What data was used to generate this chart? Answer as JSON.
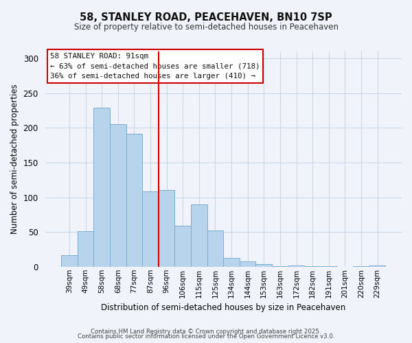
{
  "title": "58, STANLEY ROAD, PEACEHAVEN, BN10 7SP",
  "subtitle": "Size of property relative to semi-detached houses in Peacehaven",
  "xlabel": "Distribution of semi-detached houses by size in Peacehaven",
  "ylabel": "Number of semi-detached properties",
  "bar_labels": [
    "39sqm",
    "49sqm",
    "58sqm",
    "68sqm",
    "77sqm",
    "87sqm",
    "96sqm",
    "106sqm",
    "115sqm",
    "125sqm",
    "134sqm",
    "144sqm",
    "153sqm",
    "163sqm",
    "172sqm",
    "182sqm",
    "191sqm",
    "201sqm",
    "220sqm",
    "229sqm"
  ],
  "bar_values": [
    17,
    51,
    229,
    205,
    191,
    108,
    110,
    59,
    90,
    52,
    13,
    8,
    4,
    1,
    2,
    1,
    1,
    0,
    1,
    2
  ],
  "bar_color": "#b8d4ed",
  "bar_edge_color": "#7aadd4",
  "vline_x": 5.5,
  "vline_color": "#cc0000",
  "ylim": [
    0,
    310
  ],
  "yticks": [
    0,
    50,
    100,
    150,
    200,
    250,
    300
  ],
  "annotation_title": "58 STANLEY ROAD: 91sqm",
  "annotation_line1": "← 63% of semi-detached houses are smaller (718)",
  "annotation_line2": "36% of semi-detached houses are larger (410) →",
  "annotation_box_color": "#ffffff",
  "annotation_box_edge": "#cc0000",
  "footer1": "Contains HM Land Registry data © Crown copyright and database right 2025.",
  "footer2": "Contains public sector information licensed under the Open Government Licence v3.0.",
  "background_color": "#f0f4fa",
  "grid_color": "#c8d8e8"
}
